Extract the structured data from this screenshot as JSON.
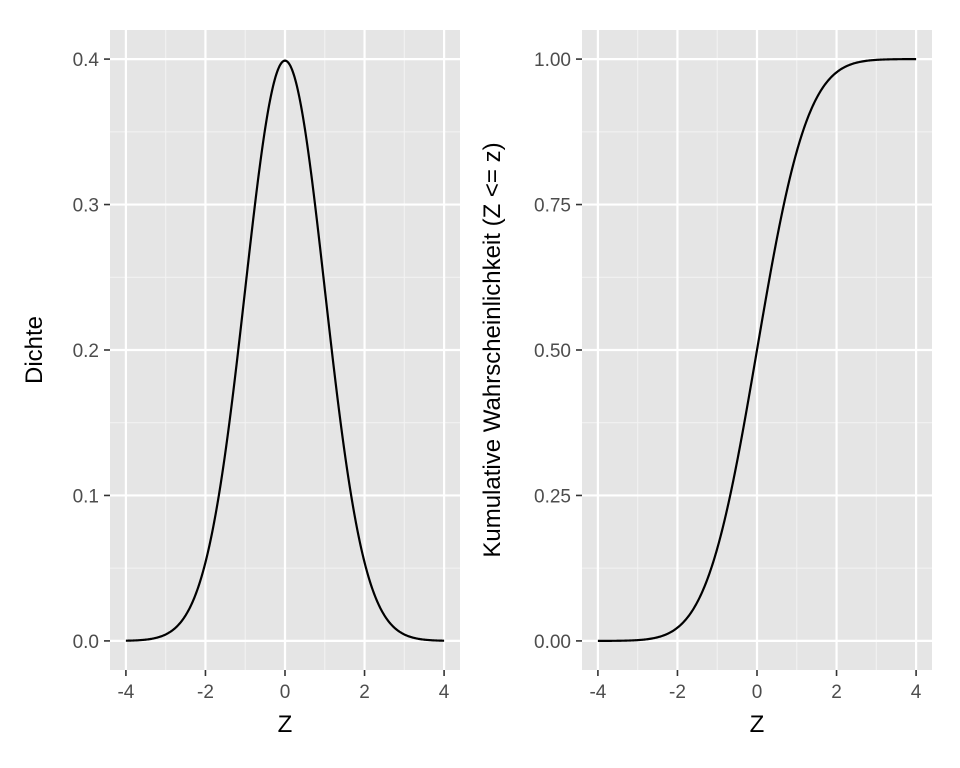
{
  "chart_data": [
    {
      "type": "line",
      "function": "normal-density",
      "xlabel": "Z",
      "ylabel": "Dichte",
      "xlim": [
        -4,
        4
      ],
      "ylim": [
        0,
        0.4
      ],
      "x_ticks": [
        -4,
        -2,
        0,
        2,
        4
      ],
      "y_ticks": [
        0.0,
        0.1,
        0.2,
        0.3,
        0.4
      ],
      "x_tick_labels": [
        "-4",
        "-2",
        "0",
        "2",
        "4"
      ],
      "y_tick_labels": [
        "0.0",
        "0.1",
        "0.2",
        "0.3",
        "0.4"
      ],
      "grid": true,
      "line_color": "#000000",
      "x": [
        -4,
        -3.5,
        -3,
        -2.5,
        -2,
        -1.5,
        -1,
        -0.5,
        0,
        0.5,
        1,
        1.5,
        2,
        2.5,
        3,
        3.5,
        4
      ],
      "y": [
        0.0001,
        0.0009,
        0.0044,
        0.0175,
        0.054,
        0.1295,
        0.242,
        0.3521,
        0.3989,
        0.3521,
        0.242,
        0.1295,
        0.054,
        0.0175,
        0.0044,
        0.0009,
        0.0001
      ]
    },
    {
      "type": "line",
      "function": "normal-cdf",
      "xlabel": "Z",
      "ylabel": "Kumulative Wahrscheinlichkeit (Z <= z)",
      "xlim": [
        -4,
        4
      ],
      "ylim": [
        0,
        1
      ],
      "x_ticks": [
        -4,
        -2,
        0,
        2,
        4
      ],
      "y_ticks": [
        0.0,
        0.25,
        0.5,
        0.75,
        1.0
      ],
      "x_tick_labels": [
        "-4",
        "-2",
        "0",
        "2",
        "4"
      ],
      "y_tick_labels": [
        "0.00",
        "0.25",
        "0.50",
        "0.75",
        "1.00"
      ],
      "grid": true,
      "line_color": "#000000",
      "x": [
        -4,
        -3.5,
        -3,
        -2.5,
        -2,
        -1.5,
        -1,
        -0.5,
        0,
        0.5,
        1,
        1.5,
        2,
        2.5,
        3,
        3.5,
        4
      ],
      "y": [
        0.0,
        0.0002,
        0.0013,
        0.0062,
        0.0228,
        0.0668,
        0.1587,
        0.3085,
        0.5,
        0.6915,
        0.8413,
        0.9332,
        0.9772,
        0.9938,
        0.9987,
        0.9998,
        1.0
      ]
    }
  ]
}
